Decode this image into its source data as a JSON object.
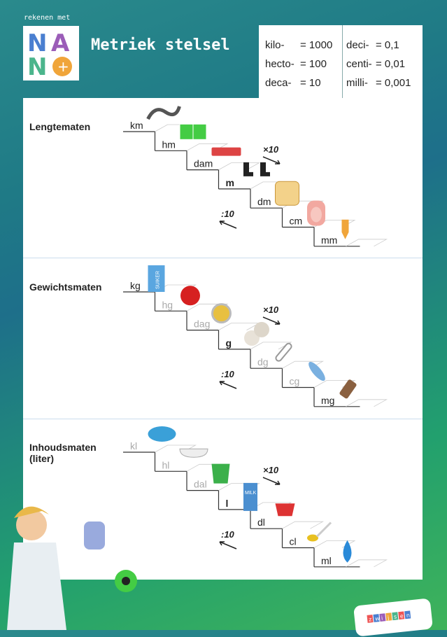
{
  "header": {
    "tagline": "rekenen met",
    "logo_text": "NANO",
    "title": "Metriek stelsel"
  },
  "prefixes": {
    "multiples": [
      {
        "p": "kilo-",
        "v": "= 1000"
      },
      {
        "p": "hecto-",
        "v": "= 100"
      },
      {
        "p": "deca-",
        "v": "= 10"
      }
    ],
    "fractions": [
      {
        "p": "deci-",
        "v": "= 0,1"
      },
      {
        "p": "centi-",
        "v": "= 0,01"
      },
      {
        "p": "milli-",
        "v": "= 0,001"
      }
    ]
  },
  "operations": {
    "up": "×10",
    "down": ":10"
  },
  "sections": [
    {
      "title": "Lengtematen",
      "steps": [
        {
          "unit": "km",
          "icon": "road-icon"
        },
        {
          "unit": "hm",
          "icon": "football-field-icon"
        },
        {
          "unit": "dam",
          "icon": "bus-icon"
        },
        {
          "unit": "m",
          "icon": "footsteps-icon",
          "bold": true
        },
        {
          "unit": "dm",
          "icon": "bread-icon"
        },
        {
          "unit": "cm",
          "icon": "fingernail-icon"
        },
        {
          "unit": "mm",
          "icon": "pencil-tip-icon"
        }
      ]
    },
    {
      "title": "Gewichtsmaten",
      "steps": [
        {
          "unit": "kg",
          "icon": "sugar-box-icon",
          "text": "SUIKER"
        },
        {
          "unit": "hg",
          "icon": "apple-icon",
          "gray": true
        },
        {
          "unit": "dag",
          "icon": "coin-icon",
          "gray": true
        },
        {
          "unit": "g",
          "icon": "tablets-icon",
          "bold": true
        },
        {
          "unit": "dg",
          "icon": "paperclip-icon",
          "gray": true
        },
        {
          "unit": "cg",
          "icon": "feather-icon",
          "gray": true
        },
        {
          "unit": "mg",
          "icon": "salt-icon"
        }
      ]
    },
    {
      "title": "Inhoudsmaten\n(liter)",
      "steps": [
        {
          "unit": "kl",
          "icon": "pool-icon",
          "gray": true
        },
        {
          "unit": "hl",
          "icon": "bathtub-icon",
          "gray": true
        },
        {
          "unit": "dal",
          "icon": "bucket-icon",
          "gray": true
        },
        {
          "unit": "l",
          "icon": "milk-carton-icon",
          "bold": true,
          "text": "MILK"
        },
        {
          "unit": "dl",
          "icon": "cup-icon"
        },
        {
          "unit": "cl",
          "icon": "spoon-icon"
        },
        {
          "unit": "ml",
          "icon": "drop-icon"
        }
      ]
    }
  ],
  "footer": {
    "publisher": "zwijsen"
  },
  "colors": {
    "logo_blue": "#4a7fd0",
    "logo_purple": "#9b5db8",
    "logo_green": "#4bb58c",
    "logo_orange": "#f0a53a",
    "text_gray": "#aaaaaa"
  }
}
